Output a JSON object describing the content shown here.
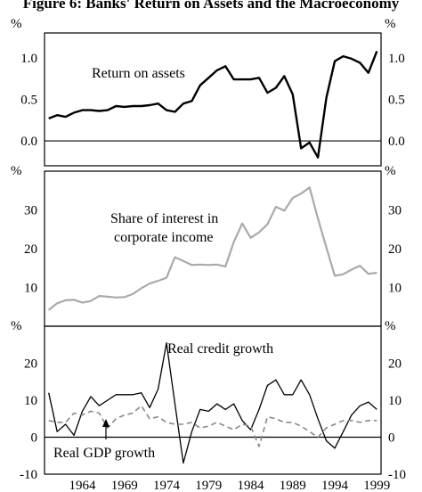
{
  "title": "Figure 6: Banks' Return on Assets and the Macroeconomy",
  "x_tick_labels": [
    "1964",
    "1969",
    "1974",
    "1979",
    "1984",
    "1989",
    "1994",
    "1999"
  ],
  "chart_data": [
    {
      "type": "line",
      "unit": "%",
      "ylim": [
        -0.3,
        1.3
      ],
      "y_ticks": [
        0.0,
        0.5,
        1.0
      ],
      "y_tick_labels": [
        "0.0",
        "0.5",
        "1.0"
      ],
      "annotation": "Return on assets",
      "series": [
        {
          "color": "#000000",
          "x": [
            1960,
            1961,
            1962,
            1963,
            1964,
            1965,
            1966,
            1967,
            1968,
            1969,
            1970,
            1971,
            1972,
            1973,
            1974,
            1975,
            1976,
            1977,
            1978,
            1979,
            1980,
            1981,
            1982,
            1983,
            1984,
            1985,
            1986,
            1987,
            1988,
            1989,
            1990,
            1991,
            1992,
            1993,
            1994,
            1995,
            1996,
            1997,
            1998,
            1999
          ],
          "values": [
            0.27,
            0.31,
            0.29,
            0.34,
            0.37,
            0.37,
            0.36,
            0.37,
            0.42,
            0.41,
            0.42,
            0.42,
            0.43,
            0.45,
            0.37,
            0.35,
            0.45,
            0.48,
            0.67,
            0.76,
            0.85,
            0.9,
            0.74,
            0.74,
            0.74,
            0.76,
            0.58,
            0.64,
            0.78,
            0.56,
            -0.09,
            -0.02,
            -0.2,
            0.52,
            0.96,
            1.02,
            0.99,
            0.94,
            0.82,
            1.08
          ]
        }
      ]
    },
    {
      "type": "line",
      "unit": "%",
      "ylim": [
        0,
        40
      ],
      "y_ticks": [
        10,
        20,
        30
      ],
      "y_tick_labels": [
        "10",
        "20",
        "30"
      ],
      "annotation_lines": [
        "Share of interest in",
        "corporate income"
      ],
      "series": [
        {
          "color": "#aaaaaa",
          "x": [
            1960,
            1961,
            1962,
            1963,
            1964,
            1965,
            1966,
            1967,
            1968,
            1969,
            1970,
            1971,
            1972,
            1973,
            1974,
            1975,
            1976,
            1977,
            1978,
            1979,
            1980,
            1981,
            1982,
            1983,
            1984,
            1985,
            1986,
            1987,
            1988,
            1989,
            1990,
            1991,
            1992,
            1993,
            1994,
            1995,
            1996,
            1997,
            1998,
            1999
          ],
          "values": [
            4.2,
            5.9,
            6.7,
            6.8,
            6.1,
            6.5,
            7.8,
            7.6,
            7.4,
            7.5,
            8.3,
            9.8,
            11.0,
            11.7,
            12.5,
            17.8,
            16.8,
            15.8,
            15.9,
            15.8,
            15.9,
            15.4,
            21.7,
            26.5,
            22.8,
            24.2,
            26.3,
            30.8,
            29.8,
            33.1,
            34.2,
            35.8,
            27.8,
            20.3,
            13.0,
            13.4,
            14.6,
            15.6,
            13.5,
            13.8
          ]
        }
      ]
    },
    {
      "type": "line",
      "unit": "%",
      "ylim": [
        -10,
        30
      ],
      "y_ticks": [
        -10,
        0,
        10,
        20
      ],
      "y_tick_labels": [
        "-10",
        "0",
        "10",
        "20"
      ],
      "series": [
        {
          "name": "Real credit growth",
          "color": "#000000",
          "dash": "none",
          "x": [
            1960,
            1961,
            1962,
            1963,
            1964,
            1965,
            1966,
            1967,
            1968,
            1969,
            1970,
            1971,
            1972,
            1973,
            1974,
            1975,
            1976,
            1977,
            1978,
            1979,
            1980,
            1981,
            1982,
            1983,
            1984,
            1985,
            1986,
            1987,
            1988,
            1989,
            1990,
            1991,
            1992,
            1993,
            1994,
            1995,
            1996,
            1997,
            1998,
            1999
          ],
          "values": [
            12.0,
            1.5,
            3.5,
            0.5,
            7.0,
            11.0,
            8.5,
            10.0,
            11.5,
            11.5,
            11.5,
            12.0,
            8.0,
            13.0,
            25.5,
            9.0,
            -7.0,
            1.5,
            7.5,
            7.0,
            9.0,
            7.5,
            9.0,
            4.5,
            2.0,
            7.5,
            14.0,
            15.5,
            11.5,
            11.5,
            15.5,
            11.5,
            5.0,
            -1.0,
            -3.0,
            1.5,
            6.0,
            8.5,
            9.5,
            7.5
          ]
        },
        {
          "name": "Real GDP growth",
          "color": "#888888",
          "dash": "6,4",
          "x": [
            1960,
            1961,
            1962,
            1963,
            1964,
            1965,
            1966,
            1967,
            1968,
            1969,
            1970,
            1971,
            1972,
            1973,
            1974,
            1975,
            1976,
            1977,
            1978,
            1979,
            1980,
            1981,
            1982,
            1983,
            1984,
            1985,
            1986,
            1987,
            1988,
            1989,
            1990,
            1991,
            1992,
            1993,
            1994,
            1995,
            1996,
            1997,
            1998,
            1999
          ],
          "values": [
            4.5,
            4.0,
            4.0,
            6.5,
            6.0,
            7.0,
            6.5,
            2.5,
            5.0,
            6.0,
            6.5,
            8.5,
            5.0,
            5.5,
            4.0,
            3.5,
            3.5,
            4.0,
            2.5,
            3.0,
            4.0,
            3.0,
            2.0,
            3.5,
            3.0,
            -2.5,
            5.5,
            5.0,
            4.0,
            4.0,
            3.0,
            1.5,
            0.0,
            2.5,
            3.5,
            4.5,
            4.5,
            4.0,
            4.5,
            4.5
          ]
        }
      ],
      "label_credit": "Real credit growth",
      "label_gdp": "Real GDP growth"
    }
  ]
}
